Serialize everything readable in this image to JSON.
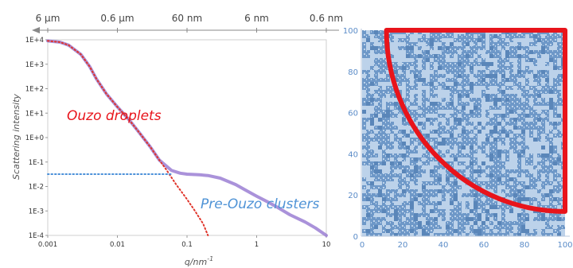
{
  "chart_data": [
    {
      "type": "line",
      "xscale": "log",
      "yscale": "log",
      "xlim": [
        0.001,
        10
      ],
      "ylim": [
        0.0001,
        10000
      ],
      "xlabel": "q/nm",
      "xlabel_sup": "-1",
      "ylabel": "Scattering intensity",
      "x_ticks": [
        {
          "v": 0.001,
          "label": "0.001"
        },
        {
          "v": 0.01,
          "label": "0.01"
        },
        {
          "v": 0.1,
          "label": "0.1"
        },
        {
          "v": 1,
          "label": "1"
        },
        {
          "v": 10,
          "label": "10"
        }
      ],
      "y_ticks": [
        {
          "v": 10000,
          "label": "1E+4"
        },
        {
          "v": 1000,
          "label": "1E+3"
        },
        {
          "v": 100,
          "label": "1E+2"
        },
        {
          "v": 10,
          "label": "1E+1"
        },
        {
          "v": 1,
          "label": "1E+0"
        },
        {
          "v": 0.1,
          "label": "1E-1"
        },
        {
          "v": 0.01,
          "label": "1E-2"
        },
        {
          "v": 0.001,
          "label": "1E-3"
        },
        {
          "v": 0.0001,
          "label": "1E-4"
        }
      ],
      "top_axis": [
        {
          "v": 0.001,
          "label": "6 µm"
        },
        {
          "v": 0.01,
          "label": "0.6 µm"
        },
        {
          "v": 0.1,
          "label": "60 nm"
        },
        {
          "v": 1,
          "label": "6 nm"
        },
        {
          "v": 10,
          "label": "0.6 nm"
        }
      ],
      "series": [
        {
          "style": "solid",
          "color": "#9b7fd4",
          "x": [
            0.001,
            0.0015,
            0.002,
            0.003,
            0.004,
            0.005,
            0.007,
            0.01,
            0.015,
            0.02,
            0.03,
            0.04,
            0.06,
            0.08,
            0.1,
            0.15,
            0.2,
            0.3,
            0.5,
            0.7,
            1,
            1.5,
            2,
            3,
            5,
            7,
            10
          ],
          "y": [
            9000,
            8000,
            6000,
            2500,
            800,
            250,
            60,
            18,
            5,
            1.8,
            0.4,
            0.12,
            0.045,
            0.035,
            0.032,
            0.03,
            0.028,
            0.022,
            0.012,
            0.007,
            0.004,
            0.0022,
            0.0014,
            0.0007,
            0.00035,
            0.0002,
            0.0001
          ]
        },
        {
          "style": "dotted",
          "color": "#e0352b",
          "x": [
            0.001,
            0.0015,
            0.002,
            0.003,
            0.004,
            0.005,
            0.007,
            0.01,
            0.015,
            0.02,
            0.03,
            0.04,
            0.05,
            0.07,
            0.1,
            0.13,
            0.17,
            0.2
          ],
          "y": [
            9000,
            8000,
            6000,
            2500,
            800,
            250,
            60,
            18,
            5,
            1.8,
            0.4,
            0.12,
            0.05,
            0.012,
            0.003,
            0.001,
            0.0003,
            0.0001
          ]
        },
        {
          "style": "dotted",
          "color": "#4a90d9",
          "x": [
            0.001,
            0.06
          ],
          "y": [
            0.032,
            0.032
          ]
        }
      ],
      "annotations": [
        {
          "text": "Ouzo droplets",
          "color": "#e8141b"
        },
        {
          "text": "Pre-Ouzo clusters",
          "color": "#4f93d6"
        }
      ]
    },
    {
      "type": "heatmap",
      "xlim": [
        0,
        100
      ],
      "ylim": [
        0,
        100
      ],
      "x_ticks": [
        0,
        20,
        40,
        60,
        80,
        100
      ],
      "y_ticks": [
        0,
        20,
        40,
        60,
        80,
        100
      ],
      "colors": {
        "dense": "#6e98c8",
        "sparse": "#bcd2ea",
        "highlight": "#e8141b"
      },
      "highlight_region": {
        "shape": "quarter-circle-sector",
        "center": [
          100,
          100
        ],
        "radius": 88
      }
    }
  ]
}
